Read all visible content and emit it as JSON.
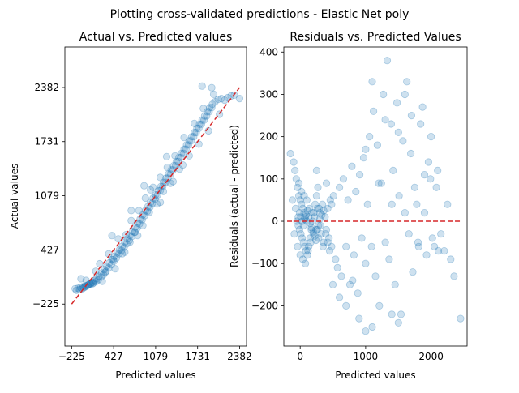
{
  "figure": {
    "suptitle": "Plotting cross-validated predictions - Elastic Net poly"
  },
  "chart_data": [
    {
      "type": "scatter",
      "title": "Actual vs. Predicted values",
      "xlabel": "Predicted values",
      "ylabel": "Actual values",
      "xlim": [
        -330,
        2490
      ],
      "ylim": [
        -730,
        2870
      ],
      "xticks": [
        -225,
        427,
        1079,
        1731,
        2382
      ],
      "yticks": [
        -225,
        427,
        1079,
        1731,
        2382
      ],
      "reference_line": {
        "x": [
          -225,
          2382
        ],
        "y": [
          -225,
          2382
        ],
        "color": "#d62728",
        "style": "dashed"
      },
      "point_color": "#1f77b4",
      "point_alpha": 0.22,
      "points": [
        [
          -150,
          -60
        ],
        [
          -100,
          -50
        ],
        [
          -60,
          -40
        ],
        [
          -40,
          -30
        ],
        [
          -20,
          -20
        ],
        [
          0,
          -10
        ],
        [
          20,
          0
        ],
        [
          40,
          10
        ],
        [
          60,
          20
        ],
        [
          80,
          30
        ],
        [
          100,
          40
        ],
        [
          130,
          60
        ],
        [
          160,
          80
        ],
        [
          200,
          110
        ],
        [
          240,
          150
        ],
        [
          280,
          190
        ],
        [
          320,
          230
        ],
        [
          360,
          270
        ],
        [
          400,
          310
        ],
        [
          440,
          350
        ],
        [
          480,
          390
        ],
        [
          520,
          430
        ],
        [
          560,
          470
        ],
        [
          600,
          520
        ],
        [
          640,
          560
        ],
        [
          680,
          600
        ],
        [
          720,
          650
        ],
        [
          760,
          700
        ],
        [
          800,
          750
        ],
        [
          840,
          800
        ],
        [
          880,
          850
        ],
        [
          920,
          900
        ],
        [
          960,
          950
        ],
        [
          1000,
          1000
        ],
        [
          1040,
          1050
        ],
        [
          1080,
          1090
        ],
        [
          1120,
          1140
        ],
        [
          1160,
          1190
        ],
        [
          1200,
          1240
        ],
        [
          1240,
          1290
        ],
        [
          1280,
          1340
        ],
        [
          1320,
          1390
        ],
        [
          1360,
          1440
        ],
        [
          1400,
          1490
        ],
        [
          1440,
          1540
        ],
        [
          1480,
          1590
        ],
        [
          1520,
          1640
        ],
        [
          1560,
          1690
        ],
        [
          1600,
          1740
        ],
        [
          1640,
          1790
        ],
        [
          1680,
          1840
        ],
        [
          1720,
          1890
        ],
        [
          1760,
          1940
        ],
        [
          1800,
          1990
        ],
        [
          1840,
          2040
        ],
        [
          1880,
          2090
        ],
        [
          1920,
          2140
        ],
        [
          1960,
          2180
        ],
        [
          2000,
          2210
        ],
        [
          2050,
          2240
        ],
        [
          2100,
          2250
        ],
        [
          2150,
          2230
        ],
        [
          2200,
          2260
        ],
        [
          2250,
          2280
        ],
        [
          2300,
          2290
        ],
        [
          2382,
          2250
        ],
        [
          -80,
          80
        ],
        [
          0,
          60
        ],
        [
          100,
          20
        ],
        [
          150,
          170
        ],
        [
          210,
          260
        ],
        [
          300,
          160
        ],
        [
          350,
          380
        ],
        [
          420,
          310
        ],
        [
          500,
          560
        ],
        [
          560,
          380
        ],
        [
          620,
          610
        ],
        [
          680,
          520
        ],
        [
          700,
          780
        ],
        [
          760,
          640
        ],
        [
          820,
          900
        ],
        [
          880,
          720
        ],
        [
          920,
          1050
        ],
        [
          980,
          880
        ],
        [
          1040,
          1180
        ],
        [
          1100,
          980
        ],
        [
          1150,
          1300
        ],
        [
          1200,
          1130
        ],
        [
          1260,
          1420
        ],
        [
          1310,
          1230
        ],
        [
          1380,
          1560
        ],
        [
          1450,
          1400
        ],
        [
          1520,
          1780
        ],
        [
          1600,
          1560
        ],
        [
          1680,
          1950
        ],
        [
          1750,
          1700
        ],
        [
          1820,
          2130
        ],
        [
          1900,
          1860
        ],
        [
          1980,
          2300
        ],
        [
          2070,
          2060
        ],
        [
          1800,
          2400
        ],
        [
          1950,
          2380
        ],
        [
          -170,
          -40
        ],
        [
          -130,
          -35
        ],
        [
          -90,
          -25
        ],
        [
          -50,
          -15
        ],
        [
          -10,
          -5
        ],
        [
          30,
          5
        ],
        [
          70,
          15
        ],
        [
          110,
          30
        ],
        [
          150,
          45
        ],
        [
          190,
          70
        ],
        [
          230,
          100
        ],
        [
          270,
          130
        ],
        [
          310,
          170
        ],
        [
          350,
          210
        ],
        [
          390,
          250
        ],
        [
          430,
          290
        ],
        [
          470,
          330
        ],
        [
          510,
          380
        ],
        [
          550,
          420
        ],
        [
          590,
          460
        ],
        [
          630,
          500
        ],
        [
          670,
          540
        ],
        [
          710,
          590
        ],
        [
          750,
          640
        ],
        [
          790,
          690
        ],
        [
          830,
          740
        ],
        [
          870,
          790
        ],
        [
          910,
          840
        ],
        [
          950,
          890
        ],
        [
          990,
          940
        ],
        [
          1030,
          990
        ],
        [
          1070,
          1040
        ],
        [
          1110,
          1090
        ],
        [
          1150,
          1140
        ],
        [
          1190,
          1190
        ],
        [
          1230,
          1240
        ],
        [
          1270,
          1290
        ],
        [
          1310,
          1340
        ],
        [
          1350,
          1390
        ],
        [
          1390,
          1440
        ],
        [
          1430,
          1490
        ],
        [
          1470,
          1540
        ],
        [
          1510,
          1590
        ],
        [
          1550,
          1640
        ],
        [
          1590,
          1690
        ],
        [
          1630,
          1740
        ],
        [
          1670,
          1790
        ],
        [
          1710,
          1840
        ],
        [
          1750,
          1890
        ],
        [
          1790,
          1940
        ],
        [
          1830,
          1990
        ],
        [
          1870,
          2040
        ],
        [
          1910,
          2090
        ],
        [
          1950,
          2140
        ],
        [
          900,
          1200
        ],
        [
          1000,
          1150
        ],
        [
          1150,
          1000
        ],
        [
          1250,
          1550
        ],
        [
          1350,
          1250
        ],
        [
          1500,
          1450
        ],
        [
          400,
          600
        ],
        [
          450,
          200
        ],
        [
          600,
          400
        ],
        [
          700,
          900
        ],
        [
          800,
          600
        ],
        [
          250,
          50
        ]
      ]
    },
    {
      "type": "scatter",
      "title": "Residuals vs. Predicted Values",
      "xlabel": "Predicted values",
      "ylabel": "Residuals (actual - predicted)",
      "xlim": [
        -250,
        2550
      ],
      "ylim": [
        -295,
        412
      ],
      "xticks": [
        0,
        1000,
        2000
      ],
      "yticks": [
        -200,
        -100,
        0,
        100,
        200,
        300,
        400
      ],
      "reference_line": {
        "x": [
          -200,
          2450
        ],
        "y": [
          0,
          0
        ],
        "color": "#d62728",
        "style": "dashed"
      },
      "point_color": "#1f77b4",
      "point_alpha": 0.22,
      "points": [
        [
          -150,
          160
        ],
        [
          -100,
          140
        ],
        [
          -80,
          120
        ],
        [
          -60,
          100
        ],
        [
          -40,
          80
        ],
        [
          -20,
          60
        ],
        [
          0,
          50
        ],
        [
          20,
          40
        ],
        [
          40,
          30
        ],
        [
          60,
          20
        ],
        [
          80,
          10
        ],
        [
          100,
          0
        ],
        [
          -30,
          -10
        ],
        [
          -10,
          -20
        ],
        [
          10,
          -30
        ],
        [
          30,
          -40
        ],
        [
          50,
          -50
        ],
        [
          70,
          -60
        ],
        [
          90,
          -70
        ],
        [
          110,
          -80
        ],
        [
          130,
          -60
        ],
        [
          150,
          -40
        ],
        [
          170,
          -20
        ],
        [
          190,
          0
        ],
        [
          210,
          20
        ],
        [
          230,
          40
        ],
        [
          250,
          60
        ],
        [
          270,
          80
        ],
        [
          290,
          30
        ],
        [
          310,
          -10
        ],
        [
          -50,
          0
        ],
        [
          -30,
          10
        ],
        [
          -10,
          20
        ],
        [
          10,
          10
        ],
        [
          30,
          0
        ],
        [
          50,
          -10
        ],
        [
          70,
          5
        ],
        [
          90,
          15
        ],
        [
          110,
          25
        ],
        [
          130,
          10
        ],
        [
          150,
          -5
        ],
        [
          170,
          -15
        ],
        [
          200,
          -25
        ],
        [
          220,
          -35
        ],
        [
          240,
          -45
        ],
        [
          260,
          -20
        ],
        [
          280,
          -10
        ],
        [
          300,
          5
        ],
        [
          330,
          15
        ],
        [
          360,
          25
        ],
        [
          390,
          -30
        ],
        [
          420,
          -50
        ],
        [
          450,
          -70
        ],
        [
          480,
          40
        ],
        [
          510,
          60
        ],
        [
          540,
          -90
        ],
        [
          570,
          -110
        ],
        [
          600,
          80
        ],
        [
          630,
          -130
        ],
        [
          660,
          100
        ],
        [
          700,
          -60
        ],
        [
          730,
          50
        ],
        [
          760,
          -150
        ],
        [
          790,
          130
        ],
        [
          820,
          -80
        ],
        [
          850,
          70
        ],
        [
          880,
          -170
        ],
        [
          910,
          110
        ],
        [
          940,
          -40
        ],
        [
          970,
          150
        ],
        [
          1000,
          -100
        ],
        [
          1030,
          40
        ],
        [
          1060,
          200
        ],
        [
          1090,
          -60
        ],
        [
          1120,
          260
        ],
        [
          1150,
          -130
        ],
        [
          1180,
          180
        ],
        [
          1210,
          -200
        ],
        [
          1240,
          90
        ],
        [
          1270,
          300
        ],
        [
          1300,
          -50
        ],
        [
          1330,
          380
        ],
        [
          1360,
          -90
        ],
        [
          1390,
          230
        ],
        [
          1420,
          120
        ],
        [
          1450,
          -150
        ],
        [
          1480,
          280
        ],
        [
          1510,
          60
        ],
        [
          1540,
          -220
        ],
        [
          1570,
          190
        ],
        [
          1600,
          20
        ],
        [
          1630,
          330
        ],
        [
          1660,
          -30
        ],
        [
          1690,
          160
        ],
        [
          1720,
          -120
        ],
        [
          1750,
          80
        ],
        [
          1780,
          40
        ],
        [
          1810,
          -60
        ],
        [
          1840,
          230
        ],
        [
          1870,
          270
        ],
        [
          1900,
          110
        ],
        [
          1930,
          -80
        ],
        [
          1960,
          140
        ],
        [
          1990,
          100
        ],
        [
          2020,
          -40
        ],
        [
          2050,
          -60
        ],
        [
          2080,
          80
        ],
        [
          2110,
          -70
        ],
        [
          2150,
          -30
        ],
        [
          2200,
          -70
        ],
        [
          2250,
          40
        ],
        [
          2300,
          -90
        ],
        [
          2350,
          -130
        ],
        [
          2450,
          -230
        ],
        [
          900,
          -230
        ],
        [
          1000,
          -260
        ],
        [
          1100,
          -250
        ],
        [
          1400,
          -220
        ],
        [
          1500,
          -240
        ],
        [
          600,
          -180
        ],
        [
          700,
          -200
        ],
        [
          800,
          -140
        ],
        [
          500,
          -150
        ],
        [
          400,
          90
        ],
        [
          350,
          -60
        ],
        [
          250,
          120
        ],
        [
          -120,
          50
        ],
        [
          -90,
          -30
        ],
        [
          -70,
          30
        ],
        [
          -40,
          -60
        ],
        [
          -20,
          90
        ],
        [
          0,
          -80
        ],
        [
          20,
          70
        ],
        [
          40,
          -90
        ],
        [
          60,
          60
        ],
        [
          80,
          -100
        ],
        [
          100,
          50
        ],
        [
          120,
          -70
        ],
        [
          140,
          30
        ],
        [
          160,
          -50
        ],
        [
          180,
          20
        ],
        [
          200,
          -30
        ],
        [
          220,
          10
        ],
        [
          240,
          -20
        ],
        [
          260,
          30
        ],
        [
          280,
          -40
        ],
        [
          300,
          20
        ],
        [
          320,
          -30
        ],
        [
          340,
          40
        ],
        [
          360,
          -50
        ],
        [
          380,
          10
        ],
        [
          400,
          -20
        ],
        [
          420,
          30
        ],
        [
          440,
          -40
        ],
        [
          460,
          50
        ],
        [
          480,
          -60
        ],
        [
          1000,
          170
        ],
        [
          1100,
          330
        ],
        [
          1200,
          90
        ],
        [
          1300,
          240
        ],
        [
          1400,
          40
        ],
        [
          1500,
          210
        ],
        [
          1600,
          300
        ],
        [
          1700,
          250
        ],
        [
          1800,
          -50
        ],
        [
          1900,
          20
        ],
        [
          2000,
          200
        ],
        [
          2100,
          120
        ]
      ]
    }
  ]
}
